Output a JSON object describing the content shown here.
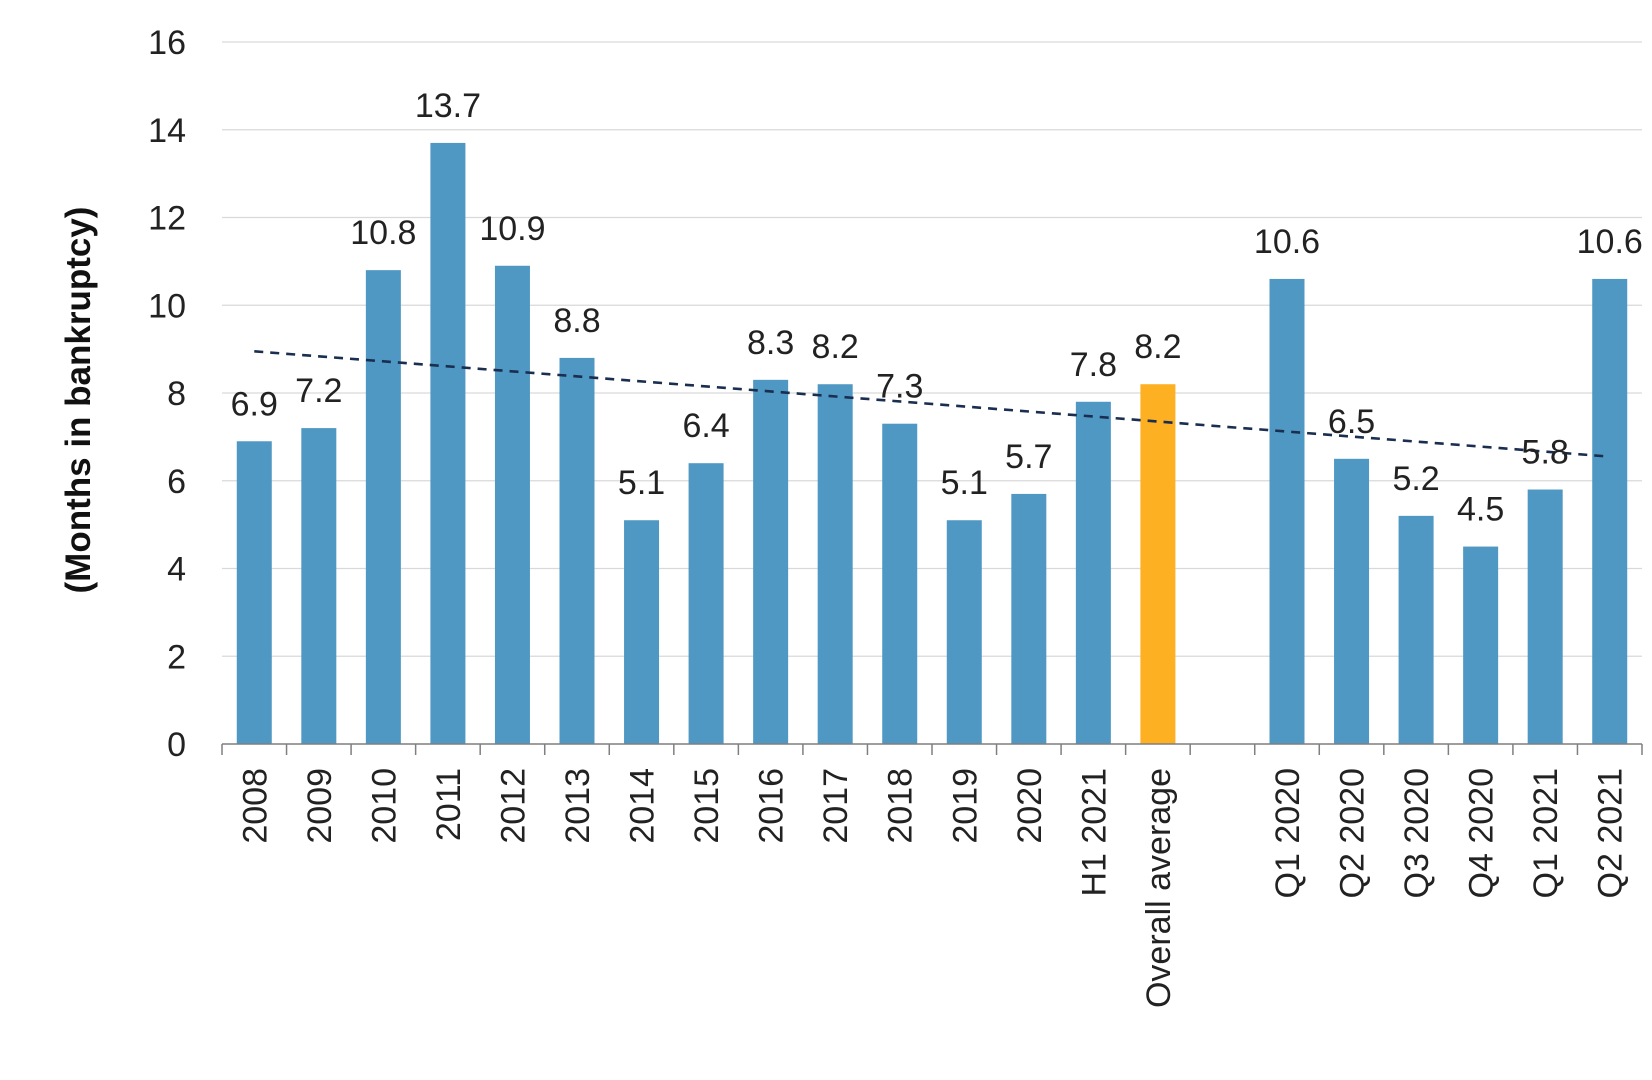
{
  "chart_data": {
    "type": "bar",
    "ylabel": "(Months in bankruptcy)",
    "xlabel": "",
    "ylim": [
      0,
      16
    ],
    "yticks": [
      0,
      2,
      4,
      6,
      8,
      10,
      12,
      14,
      16
    ],
    "grid": true,
    "categories": [
      "2008",
      "2009",
      "2010",
      "2011",
      "2012",
      "2013",
      "2014",
      "2015",
      "2016",
      "2017",
      "2018",
      "2019",
      "2020",
      "H1 2021",
      "Overall average",
      "",
      "Q1 2020",
      "Q2 2020",
      "Q3 2020",
      "Q4 2020",
      "Q1 2021",
      "Q2 2021"
    ],
    "values": [
      6.9,
      7.2,
      10.8,
      13.7,
      10.9,
      8.8,
      5.1,
      6.4,
      8.3,
      8.2,
      7.3,
      5.1,
      5.7,
      7.8,
      8.2,
      null,
      10.6,
      6.5,
      5.2,
      4.5,
      5.8,
      10.6
    ],
    "highlight_category": "Overall average",
    "trendline": {
      "style": "dashed",
      "start_value": 8.95,
      "end_value": 6.55
    },
    "colors": {
      "bar": "#4f98c3",
      "highlight": "#fdb022",
      "trendline": "#1a2e4f",
      "grid": "#d9d9d9",
      "axis": "#7f7f7f"
    }
  }
}
